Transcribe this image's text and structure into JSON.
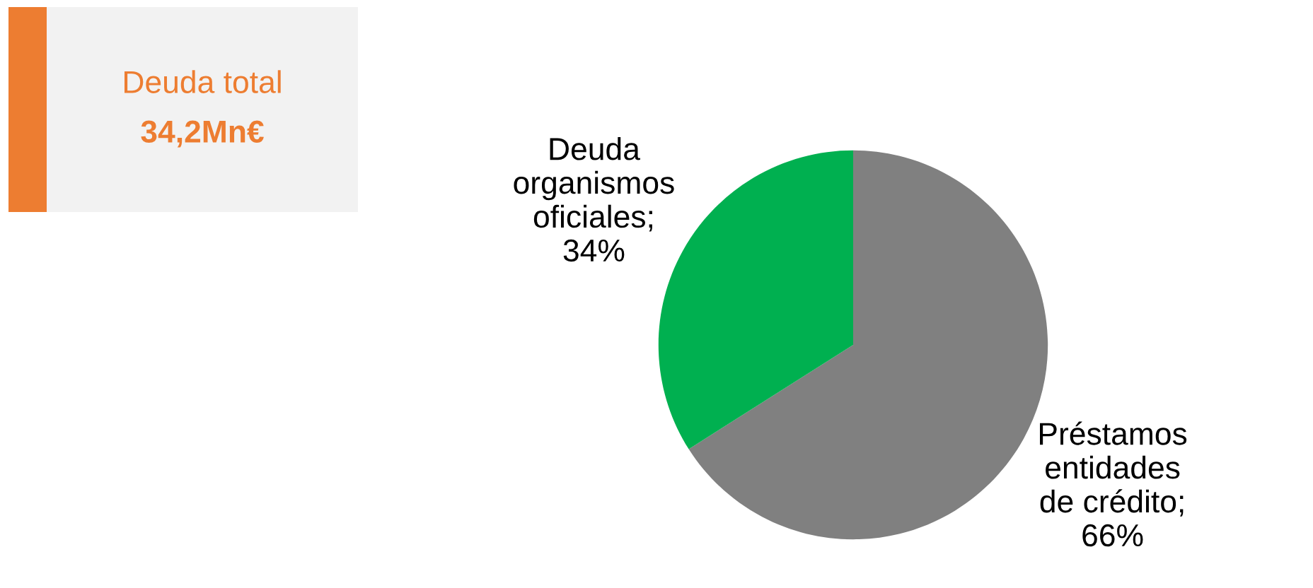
{
  "chart_data": {
    "type": "pie",
    "categories": [
      "Préstamos\nentidades\nde crédito",
      "Deuda\norganismos\noficiales"
    ],
    "value_labels": [
      ";\n66%",
      ";\n34%"
    ],
    "values": [
      66,
      34
    ],
    "colors": [
      "#808080",
      "#00b050"
    ],
    "legend": false,
    "annotations": [
      "Deuda total",
      "34,2Mn€"
    ]
  }
}
